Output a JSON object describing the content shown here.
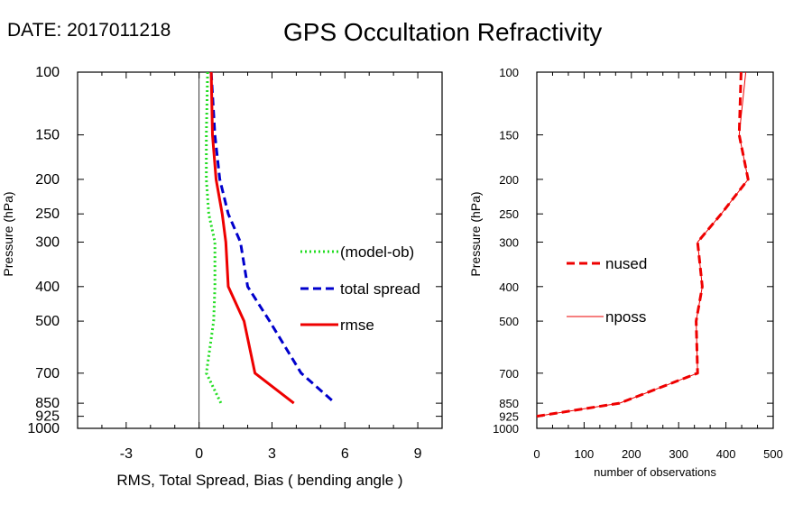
{
  "header": {
    "date_label": "DATE: 2017011218",
    "title": "GPS Occultation Refractivity"
  },
  "chart_data": [
    {
      "type": "line",
      "title": "",
      "xlabel": "RMS, Total Spread, Bias ( bending angle )",
      "ylabel": "Pressure (hPa)",
      "xlim": [
        -5,
        10
      ],
      "ylim": [
        1000,
        100
      ],
      "yscale": "log",
      "xticks": [
        -3,
        0,
        3,
        6,
        9
      ],
      "yticks": [
        100,
        150,
        200,
        250,
        300,
        400,
        500,
        700,
        850,
        925,
        1000
      ],
      "zero_line": true,
      "legend_position": "center-right",
      "series": [
        {
          "name": "(model-ob)",
          "color": "#22dd22",
          "style": "dotted",
          "points": [
            [
              0.35,
              100
            ],
            [
              0.3,
              150
            ],
            [
              0.3,
              200
            ],
            [
              0.4,
              250
            ],
            [
              0.65,
              300
            ],
            [
              0.65,
              400
            ],
            [
              0.6,
              500
            ],
            [
              0.3,
              700
            ],
            [
              0.9,
              850
            ]
          ]
        },
        {
          "name": "total spread",
          "color": "#0000cc",
          "style": "dashed",
          "points": [
            [
              0.5,
              100
            ],
            [
              0.65,
              150
            ],
            [
              0.85,
              200
            ],
            [
              1.2,
              250
            ],
            [
              1.7,
              300
            ],
            [
              2.0,
              400
            ],
            [
              2.9,
              500
            ],
            [
              4.2,
              700
            ],
            [
              5.6,
              850
            ]
          ]
        },
        {
          "name": "rmse",
          "color": "#ee0000",
          "style": "solid",
          "points": [
            [
              0.5,
              100
            ],
            [
              0.55,
              150
            ],
            [
              0.7,
              200
            ],
            [
              0.95,
              250
            ],
            [
              1.1,
              300
            ],
            [
              1.2,
              400
            ],
            [
              1.85,
              500
            ],
            [
              2.3,
              700
            ],
            [
              3.9,
              850
            ]
          ]
        }
      ]
    },
    {
      "type": "line",
      "title": "",
      "xlabel": "number of observations",
      "ylabel": "Pressure (hPa)",
      "xlim": [
        0,
        500
      ],
      "ylim": [
        1000,
        100
      ],
      "yscale": "log",
      "xticks": [
        0,
        100,
        200,
        300,
        400,
        500
      ],
      "yticks": [
        100,
        150,
        200,
        250,
        300,
        400,
        500,
        700,
        850,
        925,
        1000
      ],
      "legend_position": "center-left",
      "series": [
        {
          "name": "nused",
          "color": "#ee0000",
          "style": "dashed",
          "points": [
            [
              432,
              100
            ],
            [
              428,
              150
            ],
            [
              447,
              200
            ],
            [
              390,
              250
            ],
            [
              340,
              300
            ],
            [
              350,
              400
            ],
            [
              337,
              500
            ],
            [
              340,
              700
            ],
            [
              175,
              850
            ],
            [
              0,
              925
            ]
          ]
        },
        {
          "name": "nposs",
          "color": "#ee0000",
          "style": "thin",
          "points": [
            [
              442,
              100
            ],
            [
              428,
              150
            ],
            [
              447,
              200
            ],
            [
              390,
              250
            ],
            [
              340,
              300
            ],
            [
              350,
              400
            ],
            [
              337,
              500
            ],
            [
              340,
              700
            ],
            [
              175,
              850
            ],
            [
              0,
              925
            ]
          ]
        }
      ]
    }
  ]
}
